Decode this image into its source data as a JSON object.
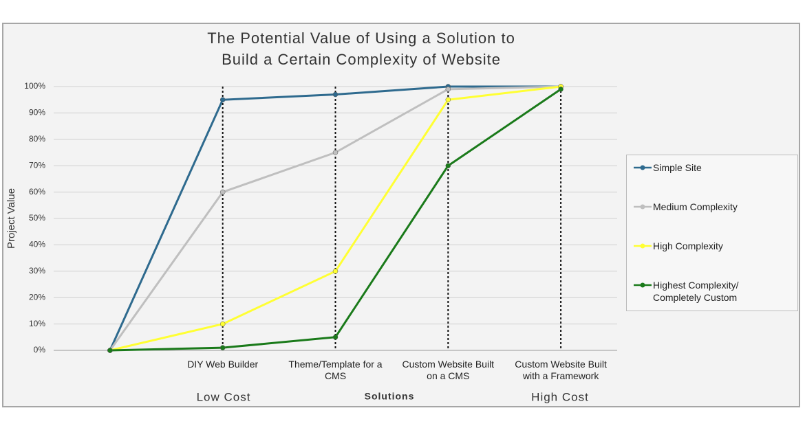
{
  "chart_data": {
    "type": "line",
    "title": [
      "The Potential Value of Using a Solution to",
      "Build a Certain Complexity of Website"
    ],
    "x_label": "Solutions",
    "y_label": "Project Value",
    "annotations": [
      "Low Cost",
      "High Cost"
    ],
    "categories": [
      null,
      "DIY Web Builder",
      "Theme/Template for a CMS",
      "Custom Website Built on a CMS",
      "Custom Website Built with a Framework"
    ],
    "series": [
      {
        "name": "Simple Site",
        "color": "#2e6a8e",
        "values": [
          0,
          95,
          97,
          100,
          100
        ]
      },
      {
        "name": "Medium Complexity",
        "color": "#bfbfbf",
        "values": [
          0,
          60,
          75,
          99,
          100
        ]
      },
      {
        "name": "High Complexity",
        "color": "#ffff33",
        "values": [
          0,
          10,
          30,
          95,
          100
        ]
      },
      {
        "name": "Highest Complexity/ Completely Custom",
        "color": "#1a7a1a",
        "values": [
          0,
          1,
          5,
          70,
          99
        ]
      }
    ],
    "ylim": [
      0,
      100
    ],
    "yticks": [
      {
        "value": 0,
        "label": "0%"
      },
      {
        "value": 10,
        "label": "10%"
      },
      {
        "value": 20,
        "label": "20%"
      },
      {
        "value": 30,
        "label": "30%"
      },
      {
        "value": 40,
        "label": "40%"
      },
      {
        "value": 50,
        "label": "50%"
      },
      {
        "value": 60,
        "label": "60%"
      },
      {
        "value": 70,
        "label": "70%"
      },
      {
        "value": 80,
        "label": "80%"
      },
      {
        "value": 90,
        "label": "90%"
      },
      {
        "value": 100,
        "label": "100%"
      }
    ],
    "grid": true,
    "legend": "right"
  }
}
